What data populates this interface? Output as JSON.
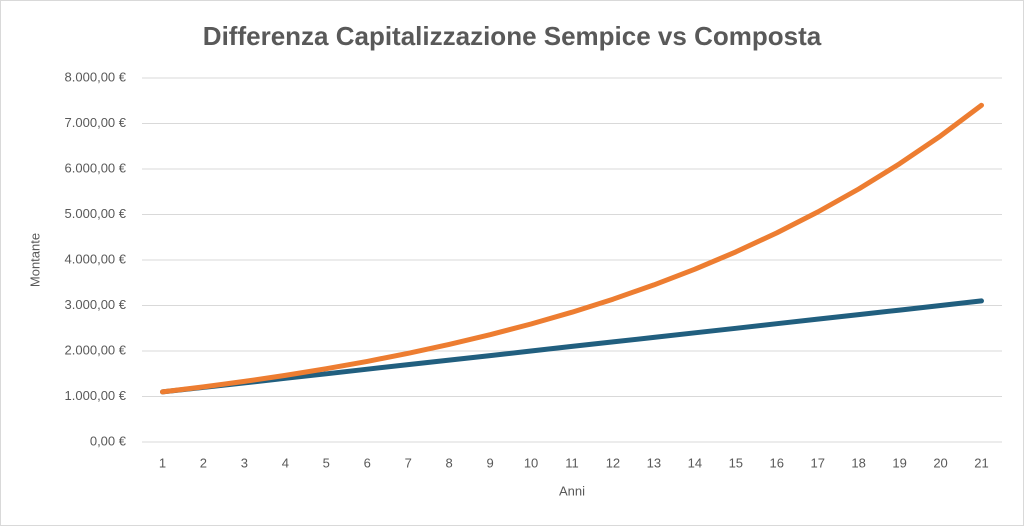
{
  "chart_data": {
    "type": "line",
    "title": "Differenza Capitalizzazione Sempice vs Composta",
    "x_label": "Anni",
    "y_label": "Montante",
    "categories": [
      "1",
      "2",
      "3",
      "4",
      "5",
      "6",
      "7",
      "8",
      "9",
      "10",
      "11",
      "12",
      "13",
      "14",
      "15",
      "16",
      "17",
      "18",
      "19",
      "20",
      "21"
    ],
    "series": [
      {
        "color": "#215f7f",
        "values": [
          1100,
          1200,
          1300,
          1400,
          1500,
          1600,
          1700,
          1800,
          1900,
          2000,
          2100,
          2200,
          2300,
          2400,
          2500,
          2600,
          2700,
          2800,
          2900,
          3000,
          3100
        ]
      },
      {
        "color": "#ed7d31",
        "values": [
          1100,
          1210,
          1331,
          1464,
          1611,
          1772,
          1949,
          2144,
          2358,
          2594,
          2853,
          3138,
          3452,
          3798,
          4177,
          4595,
          5054,
          5560,
          6116,
          6728,
          7400
        ]
      }
    ],
    "ylim": [
      0,
      8000
    ],
    "yticks": [
      {
        "value": 0,
        "label": "0,00 €"
      },
      {
        "value": 1000,
        "label": "1.000,00 €"
      },
      {
        "value": 2000,
        "label": "2.000,00 €"
      },
      {
        "value": 3000,
        "label": "3.000,00 €"
      },
      {
        "value": 4000,
        "label": "4.000,00 €"
      },
      {
        "value": 5000,
        "label": "5.000,00 €"
      },
      {
        "value": 6000,
        "label": "6.000,00 €"
      },
      {
        "value": 7000,
        "label": "7.000,00 €"
      },
      {
        "value": 8000,
        "label": "8.000,00 €"
      }
    ],
    "grid": true
  }
}
